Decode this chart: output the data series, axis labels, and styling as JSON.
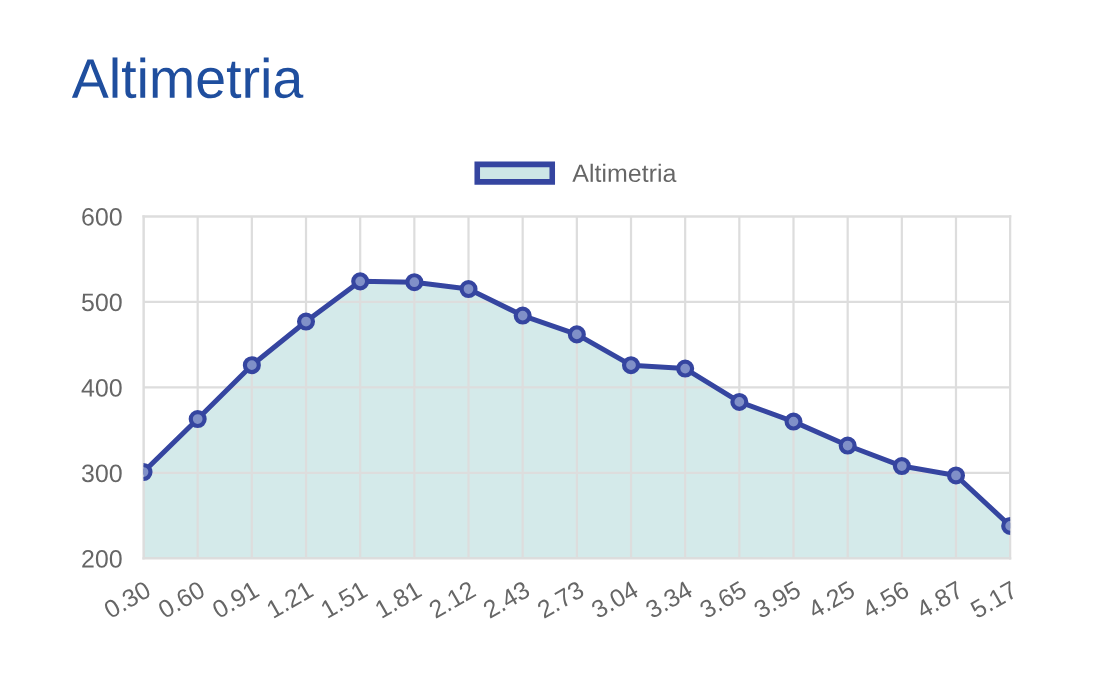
{
  "chart_data": {
    "type": "area",
    "title": "Altimetria",
    "categories": [
      "0.30",
      "0.60",
      "0.91",
      "1.21",
      "1.51",
      "1.81",
      "2.12",
      "2.43",
      "2.73",
      "3.04",
      "3.34",
      "3.65",
      "3.95",
      "4.25",
      "4.56",
      "4.87",
      "5.17"
    ],
    "series": [
      {
        "name": "Altimetria",
        "color": "#3545a0",
        "values": [
          301,
          363,
          426,
          477,
          524,
          523,
          515,
          484,
          462,
          426,
          422,
          383,
          360,
          332,
          308,
          297,
          238
        ]
      }
    ],
    "ylim": [
      200,
      600
    ],
    "yticks": [
      200,
      300,
      400,
      500,
      600
    ],
    "grid": true,
    "legend": "top",
    "marker": "circle",
    "line_style": "solid"
  }
}
